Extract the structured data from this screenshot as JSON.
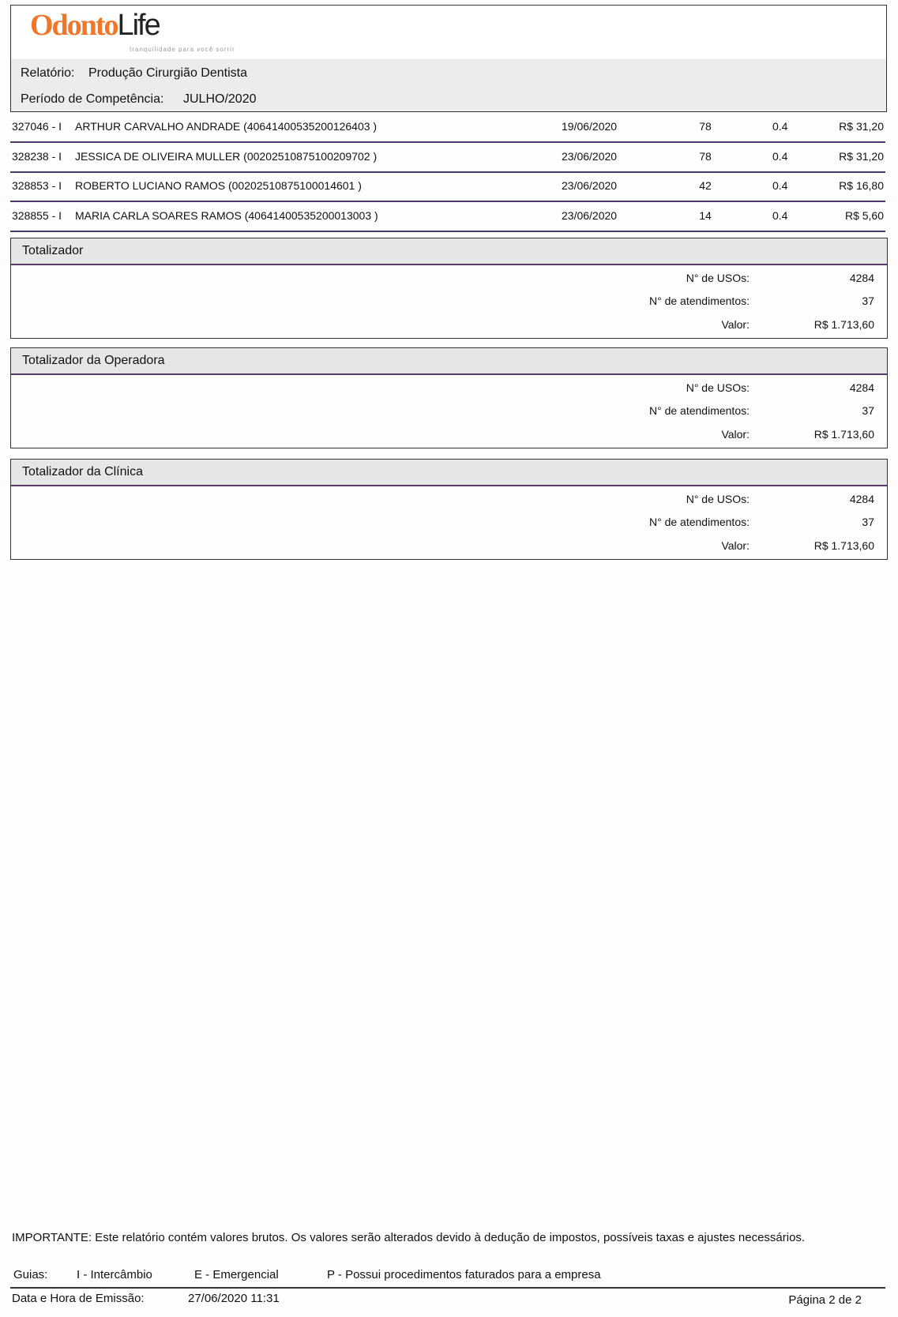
{
  "header": {
    "logo_text": "OdontoLife",
    "logo_tagline": "tranquilidade para você sorrir",
    "report_label": "Relatório:",
    "report_value": "Produção Cirurgião Dentista",
    "period_label": "Período de Competência:",
    "period_value": "JULHO/2020"
  },
  "rows": [
    {
      "guide": "327046 - I",
      "patient": "ARTHUR CARVALHO ANDRADE (40641400535200126403 )",
      "date": "19/06/2020",
      "qty": "78",
      "factor": "0.4",
      "value": "R$ 31,20"
    },
    {
      "guide": "328238 - I",
      "patient": "JESSICA DE OLIVEIRA MULLER (00202510875100209702 )",
      "date": "23/06/2020",
      "qty": "78",
      "factor": "0.4",
      "value": "R$ 31,20"
    },
    {
      "guide": "328853 - I",
      "patient": "ROBERTO LUCIANO RAMOS (00202510875100014601 )",
      "date": "23/06/2020",
      "qty": "42",
      "factor": "0.4",
      "value": "R$ 16,80"
    },
    {
      "guide": "328855 - I",
      "patient": "MARIA CARLA SOARES RAMOS (40641400535200013003 )",
      "date": "23/06/2020",
      "qty": "14",
      "factor": "0.4",
      "value": "R$ 5,60"
    }
  ],
  "totals": [
    {
      "title": "Totalizador",
      "usos_label": "N° de USOs:",
      "usos": "4284",
      "atend_label": "N° de atendimentos:",
      "atend": "37",
      "valor_label": "Valor:",
      "valor": "R$ 1.713,60"
    },
    {
      "title": "Totalizador da Operadora",
      "usos_label": "N° de USOs:",
      "usos": "4284",
      "atend_label": "N° de atendimentos:",
      "atend": "37",
      "valor_label": "Valor:",
      "valor": "R$ 1.713,60"
    },
    {
      "title": "Totalizador da Clínica",
      "usos_label": "N° de USOs:",
      "usos": "4284",
      "atend_label": "N° de atendimentos:",
      "atend": "37",
      "valor_label": "Valor:",
      "valor": "R$ 1.713,60"
    }
  ],
  "footer": {
    "important": "IMPORTANTE: Este relatório contém valores brutos. Os valores serão alterados devido à dedução de impostos, possíveis taxas e ajustes necessários.",
    "guias_label": "Guias:",
    "guia_i": "I - Intercâmbio",
    "guia_e": "E - Emergencial",
    "guia_p": "P - Possui procedimentos faturados para a empresa",
    "emission_label": "Data e Hora de Emissão:",
    "emission_value": "27/06/2020  11:31",
    "page": "Página 2 de 2"
  }
}
